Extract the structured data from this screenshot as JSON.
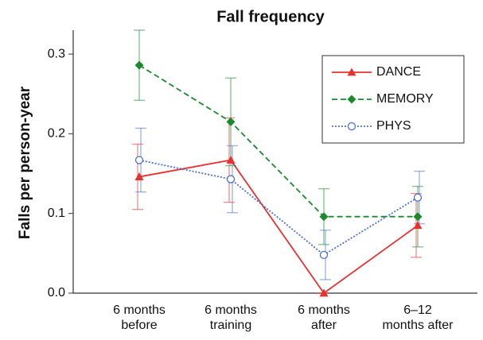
{
  "chart_data": {
    "type": "line",
    "title": "Fall frequency",
    "y_label": "Falls per person-year",
    "categories": [
      [
        "6 months",
        "before"
      ],
      [
        "6 months",
        "training"
      ],
      [
        "6 months",
        "after"
      ],
      [
        "6–12",
        "months after"
      ]
    ],
    "ylim": [
      0,
      0.33
    ],
    "yticks": [
      {
        "value": 0,
        "label": "0.0"
      },
      0.1,
      0.2,
      0.3
    ],
    "legend": "upper right",
    "series": [
      {
        "name": "DANCE",
        "color": "#e8312f",
        "marker": "triangle",
        "line_style": "solid",
        "values": [
          0.146,
          0.167,
          0.0,
          0.085
        ],
        "errors": [
          0.041,
          0.053,
          0,
          0.04
        ]
      },
      {
        "name": "MEMORY",
        "color": "#1a8a2e",
        "marker": "diamond",
        "line_style": "dashed",
        "values": [
          0.286,
          0.215,
          0.096,
          0.096
        ],
        "errors": [
          0.044,
          0.055,
          0.035,
          0.038
        ]
      },
      {
        "name": "PHYS",
        "color": "#4a6fd6",
        "marker": "circle",
        "line_style": "dotted",
        "values": [
          0.167,
          0.143,
          0.048,
          0.12
        ],
        "errors": [
          0.04,
          0.042,
          0.031,
          0.033
        ]
      }
    ]
  }
}
